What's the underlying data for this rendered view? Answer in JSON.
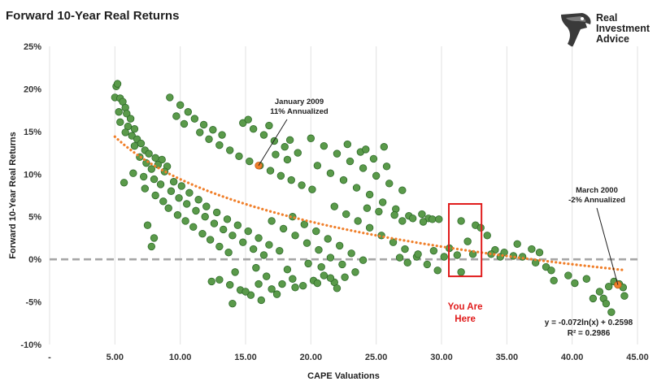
{
  "brand": {
    "line1": "Real",
    "line2": "Investment",
    "line3": "Advice",
    "logo_icon": "eagle-head-icon"
  },
  "colors": {
    "dot": "#5a9a4a",
    "dot_edge": "#2f6b2a",
    "trend": "#f07f2a",
    "zero_line": "#a6a6a6",
    "highlight_box": "#e01b1b",
    "grid": "#e2e2e2"
  },
  "chart_data": {
    "type": "scatter",
    "title": "Forward 10-Year Real Returns",
    "xlabel": "CAPE Valuations",
    "ylabel": "Forward 10-Year Real Returns",
    "xlim": [
      0,
      45
    ],
    "ylim": [
      -10,
      25
    ],
    "x_tick_labels": [
      "-",
      "5.00",
      "10.00",
      "15.00",
      "20.00",
      "25.00",
      "30.00",
      "35.00",
      "40.00",
      "45.00"
    ],
    "y_tick_labels": [
      "25%",
      "20%",
      "15%",
      "10%",
      "5%",
      "0%",
      "-5%",
      "-10%"
    ],
    "grid": "vertical",
    "reference_line": {
      "y": 0,
      "style": "dashed"
    },
    "trendline": {
      "type": "logarithmic",
      "a": -0.072,
      "b": 0.2598,
      "x_range": [
        5,
        44
      ],
      "style": "dotted"
    },
    "equation": "y = -0.072ln(x) + 0.2598",
    "r_squared": "R² = 0.2986",
    "annotations": [
      {
        "line1": "January 2009",
        "line2": "11% Annualized",
        "x": 16,
        "y": 11
      },
      {
        "line1": "March 2000",
        "line2": "-2% Annualized",
        "x": 43.5,
        "y": -3
      }
    ],
    "highlight": {
      "label_line1": "You Are",
      "label_line2": "Here",
      "x_range": [
        30,
        32.5
      ],
      "y_range": [
        -2,
        6.5
      ]
    },
    "points_summary": "Approximately 1,400 monthly observations of CAPE ratio vs subsequent 10-year real return; sample points approximated below",
    "points": [
      [
        5.1,
        20.3
      ],
      [
        5.2,
        20.6
      ],
      [
        5.0,
        19.0
      ],
      [
        5.4,
        18.9
      ],
      [
        5.6,
        18.5
      ],
      [
        5.8,
        17.8
      ],
      [
        5.3,
        17.3
      ],
      [
        5.9,
        17.1
      ],
      [
        6.2,
        16.5
      ],
      [
        5.4,
        16.1
      ],
      [
        6.0,
        15.6
      ],
      [
        6.5,
        15.3
      ],
      [
        5.8,
        14.9
      ],
      [
        6.3,
        14.5
      ],
      [
        6.7,
        14.1
      ],
      [
        7.0,
        13.6
      ],
      [
        6.5,
        13.3
      ],
      [
        7.3,
        12.8
      ],
      [
        7.6,
        12.4
      ],
      [
        6.9,
        12.0
      ],
      [
        8.1,
        11.9
      ],
      [
        8.6,
        11.7
      ],
      [
        7.4,
        11.3
      ],
      [
        8.3,
        11.1
      ],
      [
        9.0,
        10.9
      ],
      [
        7.8,
        10.6
      ],
      [
        8.8,
        10.3
      ],
      [
        6.4,
        10.1
      ],
      [
        7.2,
        9.7
      ],
      [
        8.0,
        9.4
      ],
      [
        9.5,
        9.1
      ],
      [
        5.7,
        9.0
      ],
      [
        8.5,
        8.8
      ],
      [
        10.1,
        8.6
      ],
      [
        7.3,
        8.3
      ],
      [
        9.3,
        8.0
      ],
      [
        10.7,
        7.8
      ],
      [
        8.1,
        7.5
      ],
      [
        9.9,
        7.2
      ],
      [
        11.4,
        7.0
      ],
      [
        8.7,
        6.8
      ],
      [
        10.5,
        6.5
      ],
      [
        12.0,
        6.2
      ],
      [
        9.1,
        6.0
      ],
      [
        11.2,
        5.7
      ],
      [
        12.8,
        5.5
      ],
      [
        9.8,
        5.2
      ],
      [
        11.9,
        5.0
      ],
      [
        13.6,
        4.7
      ],
      [
        10.4,
        4.5
      ],
      [
        12.6,
        4.2
      ],
      [
        14.4,
        4.0
      ],
      [
        11.0,
        3.8
      ],
      [
        13.3,
        3.5
      ],
      [
        15.2,
        3.3
      ],
      [
        11.7,
        3.0
      ],
      [
        14.0,
        2.8
      ],
      [
        16.0,
        2.5
      ],
      [
        12.3,
        2.3
      ],
      [
        14.8,
        2.0
      ],
      [
        16.8,
        1.7
      ],
      [
        13.0,
        1.5
      ],
      [
        15.6,
        1.2
      ],
      [
        17.6,
        1.0
      ],
      [
        13.7,
        0.8
      ],
      [
        16.4,
        0.5
      ],
      [
        7.5,
        4.0
      ],
      [
        8.0,
        2.5
      ],
      [
        7.8,
        1.5
      ],
      [
        9.2,
        19.0
      ],
      [
        10.0,
        18.1
      ],
      [
        10.6,
        17.3
      ],
      [
        11.1,
        16.5
      ],
      [
        11.8,
        15.8
      ],
      [
        12.5,
        15.2
      ],
      [
        13.2,
        14.6
      ],
      [
        9.7,
        16.8
      ],
      [
        10.3,
        15.9
      ],
      [
        11.5,
        14.9
      ],
      [
        12.2,
        14.1
      ],
      [
        13.0,
        13.4
      ],
      [
        13.8,
        12.8
      ],
      [
        14.5,
        12.1
      ],
      [
        15.3,
        11.5
      ],
      [
        16.1,
        11.0
      ],
      [
        16.9,
        10.4
      ],
      [
        17.7,
        9.8
      ],
      [
        18.5,
        9.3
      ],
      [
        19.3,
        8.7
      ],
      [
        20.1,
        8.2
      ],
      [
        14.8,
        16.0
      ],
      [
        15.6,
        15.3
      ],
      [
        16.4,
        14.6
      ],
      [
        17.2,
        13.9
      ],
      [
        18.0,
        13.2
      ],
      [
        15.2,
        16.4
      ],
      [
        16.8,
        15.7
      ],
      [
        18.4,
        14.0
      ],
      [
        20.0,
        14.2
      ],
      [
        21.0,
        13.3
      ],
      [
        22.0,
        12.4
      ],
      [
        23.0,
        11.5
      ],
      [
        24.0,
        10.7
      ],
      [
        25.0,
        9.8
      ],
      [
        26.0,
        8.9
      ],
      [
        27.0,
        8.1
      ],
      [
        20.5,
        11.0
      ],
      [
        21.5,
        10.1
      ],
      [
        22.5,
        9.3
      ],
      [
        23.5,
        8.4
      ],
      [
        24.5,
        7.6
      ],
      [
        25.5,
        6.7
      ],
      [
        26.5,
        5.9
      ],
      [
        27.5,
        5.1
      ],
      [
        28.5,
        5.3
      ],
      [
        29.0,
        4.8
      ],
      [
        22.8,
        13.5
      ],
      [
        23.8,
        12.6
      ],
      [
        24.8,
        11.8
      ],
      [
        25.8,
        10.9
      ],
      [
        24.2,
        12.9
      ],
      [
        25.6,
        13.2
      ],
      [
        19.0,
        12.5
      ],
      [
        18.2,
        11.7
      ],
      [
        17.3,
        12.3
      ],
      [
        21.8,
        6.2
      ],
      [
        22.7,
        5.3
      ],
      [
        23.6,
        4.5
      ],
      [
        24.5,
        3.7
      ],
      [
        25.4,
        2.8
      ],
      [
        26.3,
        2.0
      ],
      [
        27.2,
        1.2
      ],
      [
        28.1,
        0.3
      ],
      [
        18.6,
        5.0
      ],
      [
        19.5,
        4.1
      ],
      [
        20.4,
        3.3
      ],
      [
        21.3,
        2.4
      ],
      [
        22.2,
        1.6
      ],
      [
        23.1,
        0.7
      ],
      [
        24.0,
        -0.1
      ],
      [
        17.0,
        4.5
      ],
      [
        17.9,
        3.6
      ],
      [
        18.8,
        2.8
      ],
      [
        19.7,
        1.9
      ],
      [
        20.6,
        1.1
      ],
      [
        21.5,
        0.2
      ],
      [
        22.4,
        -0.6
      ],
      [
        13.0,
        -2.4
      ],
      [
        13.8,
        -3.0
      ],
      [
        14.6,
        -3.6
      ],
      [
        15.4,
        -4.2
      ],
      [
        16.2,
        -4.8
      ],
      [
        17.0,
        -3.5
      ],
      [
        17.8,
        -2.9
      ],
      [
        18.6,
        -2.3
      ],
      [
        19.4,
        -3.1
      ],
      [
        20.2,
        -2.5
      ],
      [
        21.0,
        -1.9
      ],
      [
        21.8,
        -2.7
      ],
      [
        22.6,
        -2.1
      ],
      [
        23.4,
        -1.5
      ],
      [
        12.4,
        -2.6
      ],
      [
        14.2,
        -1.5
      ],
      [
        15.8,
        -1.0
      ],
      [
        16.6,
        -2.0
      ],
      [
        18.2,
        -1.2
      ],
      [
        19.8,
        -0.5
      ],
      [
        20.8,
        -0.9
      ],
      [
        14.0,
        -5.2
      ],
      [
        15.0,
        -3.8
      ],
      [
        16.0,
        -2.9
      ],
      [
        17.4,
        -4.1
      ],
      [
        18.8,
        -3.3
      ],
      [
        20.5,
        -2.8
      ],
      [
        21.5,
        -2.2
      ],
      [
        22.0,
        -3.4
      ],
      [
        27.0,
        4.5
      ],
      [
        27.8,
        4.8
      ],
      [
        28.6,
        4.4
      ],
      [
        29.3,
        4.7
      ],
      [
        26.4,
        5.2
      ],
      [
        25.2,
        5.6
      ],
      [
        24.3,
        6.0
      ],
      [
        29.8,
        4.7
      ],
      [
        31.5,
        4.5
      ],
      [
        30.2,
        0.3
      ],
      [
        31.2,
        0.5
      ],
      [
        29.7,
        -1.3
      ],
      [
        31.5,
        -1.5
      ],
      [
        32.6,
        4.0
      ],
      [
        33.0,
        3.7
      ],
      [
        33.5,
        2.8
      ],
      [
        34.1,
        1.1
      ],
      [
        32.4,
        0.6
      ],
      [
        34.5,
        0.3
      ],
      [
        35.8,
        1.8
      ],
      [
        36.2,
        0.3
      ],
      [
        36.9,
        1.2
      ],
      [
        37.5,
        0.8
      ],
      [
        38.0,
        -0.9
      ],
      [
        38.4,
        -1.3
      ],
      [
        37.2,
        -0.4
      ],
      [
        39.7,
        -1.9
      ],
      [
        40.2,
        -2.8
      ],
      [
        41.1,
        -2.3
      ],
      [
        41.6,
        -4.6
      ],
      [
        42.1,
        -3.8
      ],
      [
        42.4,
        -4.6
      ],
      [
        42.8,
        -3.2
      ],
      [
        43.2,
        -2.6
      ],
      [
        43.6,
        -2.9
      ],
      [
        43.9,
        -3.3
      ],
      [
        42.6,
        -5.2
      ],
      [
        43.0,
        -6.2
      ],
      [
        44.0,
        -4.3
      ],
      [
        38.6,
        -2.5
      ],
      [
        29.4,
        1.0
      ],
      [
        28.9,
        -0.6
      ],
      [
        26.8,
        0.2
      ],
      [
        27.4,
        -0.4
      ],
      [
        28.2,
        0.6
      ],
      [
        30.6,
        1.3
      ],
      [
        32.0,
        2.1
      ],
      [
        33.8,
        0.6
      ],
      [
        34.8,
        0.8
      ],
      [
        35.5,
        0.4
      ]
    ]
  }
}
